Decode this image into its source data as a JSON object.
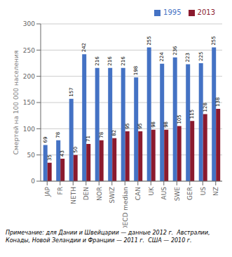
{
  "chart_data": {
    "type": "bar",
    "categories": [
      "JAP",
      "FR",
      "NETH",
      "DEN",
      "NOR",
      "SWIZ",
      "OECD median",
      "CAN",
      "UK",
      "AUS",
      "SWE",
      "GER",
      "US",
      "NZ"
    ],
    "series": [
      {
        "name": "1995",
        "color": "#4472C4",
        "values": [
          69,
          78,
          157,
          242,
          216,
          216,
          216,
          198,
          255,
          224,
          236,
          223,
          225,
          255
        ]
      },
      {
        "name": "2013",
        "color": "#8B1A2E",
        "values": [
          35,
          43,
          50,
          71,
          78,
          82,
          95,
          95,
          98,
          98,
          105,
          115,
          128,
          138
        ]
      }
    ],
    "ylabel": "Смертей на 100 000 населения",
    "ylim": [
      0,
      300
    ],
    "yticks": [
      0,
      50,
      100,
      150,
      200,
      250,
      300
    ],
    "grid": true,
    "legend": "upper right",
    "data_labels": true,
    "annotations": [
      "Примечание: для Дании и Швейцарии — данные 2012 г.  Австралии,",
      "Конады, Новой Зеландии и Франции — 2011 г.  США — 2010 г."
    ]
  }
}
